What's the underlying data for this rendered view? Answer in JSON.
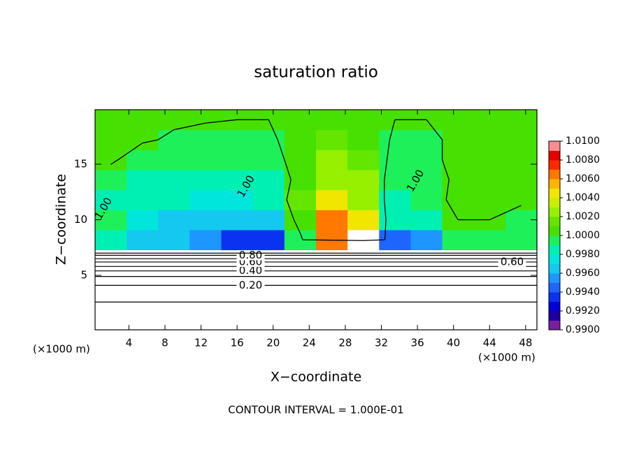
{
  "chart_data": {
    "type": "contour",
    "title": "saturation ratio",
    "xlabel": "X−coordinate",
    "ylabel": "Z−coordinate",
    "x_unit": "(×1000 m)",
    "footer": "CONTOUR INTERVAL = 1.000E-01",
    "xlim": [
      0.25,
      49.25
    ],
    "ylim": [
      0.1,
      19.9
    ],
    "xticks": [
      4,
      8,
      12,
      16,
      20,
      24,
      28,
      32,
      36,
      40,
      44,
      48
    ],
    "yticks": [
      5,
      10,
      15
    ],
    "x": [
      2,
      5.5,
      9,
      12.5,
      16,
      19.5,
      23,
      26.5,
      30,
      33.5,
      37,
      40.5,
      44,
      47.5
    ],
    "z": [
      1,
      2.8,
      4.6,
      6.4,
      8.2,
      10,
      11.8,
      13.6,
      15.4,
      17.2,
      19
    ],
    "values": [
      [
        0.05,
        0.05,
        0.05,
        0.05,
        0.05,
        0.05,
        0.05,
        0.05,
        0.05,
        0.05,
        0.05,
        0.05,
        0.05,
        0.05
      ],
      [
        0.1,
        0.1,
        0.1,
        0.1,
        0.1,
        0.1,
        0.1,
        0.1,
        0.1,
        0.1,
        0.1,
        0.1,
        0.1,
        0.1
      ],
      [
        0.3,
        0.3,
        0.3,
        0.3,
        0.3,
        0.3,
        0.3,
        0.3,
        0.3,
        0.3,
        0.3,
        0.3,
        0.3,
        0.3
      ],
      [
        0.7,
        0.7,
        0.7,
        0.7,
        0.7,
        0.7,
        0.7,
        0.7,
        0.7,
        0.7,
        0.7,
        0.7,
        0.7,
        0.7
      ],
      [
        0.9985,
        0.9965,
        0.9962,
        0.9955,
        0.9935,
        0.9932,
        0.9995,
        1.006,
        1.012,
        0.9945,
        0.995,
        0.9995,
        0.9998,
        0.9995
      ],
      [
        0.9995,
        0.997,
        0.9968,
        0.9965,
        0.996,
        0.996,
        1.001,
        1.007,
        1.005,
        0.998,
        0.998,
        1.0,
        1.0,
        0.9995
      ],
      [
        0.9985,
        0.998,
        0.998,
        0.9975,
        0.9975,
        0.998,
        1.0015,
        1.0045,
        1.003,
        0.9985,
        0.9995,
        1.0003,
        1.0003,
        1.0002
      ],
      [
        0.999,
        0.9985,
        0.9985,
        0.9985,
        0.9985,
        0.9988,
        1.0005,
        1.003,
        1.002,
        0.999,
        0.9995,
        1.0002,
        1.0002,
        1.0002
      ],
      [
        1.0003,
        0.999,
        0.999,
        0.999,
        0.9992,
        0.9995,
        1.0005,
        1.002,
        1.0015,
        0.9995,
        0.9998,
        1.0002,
        1.0002,
        1.0002
      ],
      [
        1.0003,
        1.0002,
        0.9998,
        0.9995,
        0.9996,
        0.9998,
        1.0005,
        1.0012,
        1.001,
        0.9998,
        0.9999,
        1.0001,
        1.0003,
        1.0004
      ],
      [
        1.0003,
        1.0003,
        1.0002,
        1.0001,
        1.0,
        1.0,
        1.0003,
        1.0008,
        1.0006,
        1.0,
        1.0,
        1.0001,
        1.0003,
        1.0003
      ]
    ],
    "contours": [
      {
        "level": 0.1,
        "z": 2.6
      },
      {
        "level": 0.2,
        "z": 4.1,
        "label": "0.20",
        "label_x": [
          17.5
        ]
      },
      {
        "level": 0.3,
        "z": 4.9
      },
      {
        "level": 0.4,
        "z": 5.4,
        "label": "0.40",
        "label_x": [
          17.5
        ]
      },
      {
        "level": 0.5,
        "z": 5.8
      },
      {
        "level": 0.6,
        "z": 6.2,
        "label": "0.60",
        "label_x": [
          17.5,
          46.5
        ]
      },
      {
        "level": 0.7,
        "z": 6.5
      },
      {
        "level": 0.8,
        "z": 6.8,
        "label": "0.80",
        "label_x": [
          17.5
        ]
      },
      {
        "level": 0.9,
        "z": 7.0
      },
      {
        "level": 1,
        "label": "1.00",
        "label_at": [
          [
            1.2,
            11
          ],
          [
            17,
            13
          ],
          [
            35.8,
            13.5
          ]
        ]
      }
    ],
    "colorbar": {
      "lim": [
        0.99,
        1.01
      ],
      "colors": [
        "#7a1fa0",
        "#1e00a0",
        "#0000d8",
        "#0a32f0",
        "#1e64ff",
        "#1e96ff",
        "#14c8f0",
        "#00e6dc",
        "#00f0b4",
        "#1ef05a",
        "#46e100",
        "#64e600",
        "#96f000",
        "#c8f000",
        "#f0e600",
        "#ffb400",
        "#ff7800",
        "#ff2800",
        "#e60000",
        "#ff8c8c"
      ],
      "ticks": [
        {
          "value": 0.99,
          "label": "0.9900"
        },
        {
          "value": 0.992,
          "label": "0.9920"
        },
        {
          "value": 0.994,
          "label": "0.9940"
        },
        {
          "value": 0.996,
          "label": "0.9960"
        },
        {
          "value": 0.998,
          "label": "0.9980"
        },
        {
          "value": 1.0,
          "label": "1.0000"
        },
        {
          "value": 1.002,
          "label": "1.0020"
        },
        {
          "value": 1.004,
          "label": "1.0040"
        },
        {
          "value": 1.006,
          "label": "1.0060"
        },
        {
          "value": 1.008,
          "label": "1.0080"
        },
        {
          "value": 1.01,
          "label": "1.0100"
        }
      ]
    }
  }
}
